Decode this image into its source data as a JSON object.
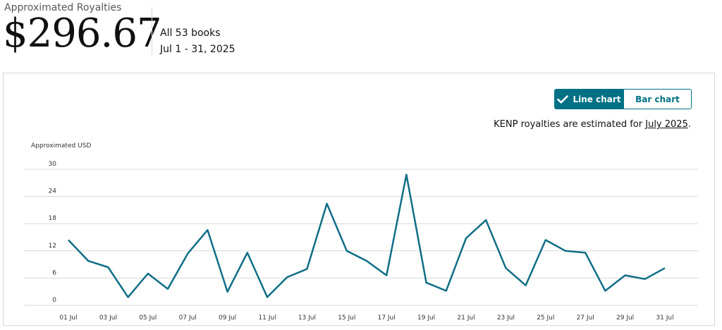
{
  "summary": {
    "label": "Approximated Royalties",
    "amount": "$296.67",
    "books": "All 53 books",
    "date_range": "Jul 1 - 31, 2025"
  },
  "toggle": {
    "line_label": "Line chart",
    "bar_label": "Bar chart",
    "active": "line"
  },
  "note": {
    "prefix": "KENP royalties are estimated for ",
    "link": "July 2025",
    "suffix": "."
  },
  "colors": {
    "line": "#0f6e86",
    "accent": "#007185",
    "grid": "#d5d9d9"
  },
  "chart_data": {
    "type": "line",
    "ylabel": "Approximated USD",
    "ylim": [
      0,
      30
    ],
    "yticks": [
      0,
      6,
      12,
      18,
      24,
      30
    ],
    "grid": true,
    "x": [
      "01 Jul",
      "02 Jul",
      "03 Jul",
      "04 Jul",
      "05 Jul",
      "06 Jul",
      "07 Jul",
      "08 Jul",
      "09 Jul",
      "10 Jul",
      "11 Jul",
      "12 Jul",
      "13 Jul",
      "14 Jul",
      "15 Jul",
      "16 Jul",
      "17 Jul",
      "18 Jul",
      "19 Jul",
      "20 Jul",
      "21 Jul",
      "22 Jul",
      "23 Jul",
      "24 Jul",
      "25 Jul",
      "26 Jul",
      "27 Jul",
      "28 Jul",
      "29 Jul",
      "30 Jul",
      "31 Jul"
    ],
    "xtick_labels": [
      "01 Jul",
      "03 Jul",
      "05 Jul",
      "07 Jul",
      "09 Jul",
      "11 Jul",
      "13 Jul",
      "15 Jul",
      "17 Jul",
      "19 Jul",
      "21 Jul",
      "23 Jul",
      "25 Jul",
      "27 Jul",
      "29 Jul",
      "31 Jul"
    ],
    "values": [
      14.4,
      9.8,
      8.4,
      1.8,
      7.0,
      3.6,
      11.4,
      16.6,
      3.0,
      11.6,
      1.8,
      6.2,
      8.0,
      22.4,
      12.0,
      9.8,
      6.6,
      28.8,
      5.0,
      3.2,
      14.8,
      18.8,
      8.2,
      4.4,
      14.4,
      12.0,
      11.6,
      3.2,
      6.6,
      5.8,
      8.2
    ]
  }
}
